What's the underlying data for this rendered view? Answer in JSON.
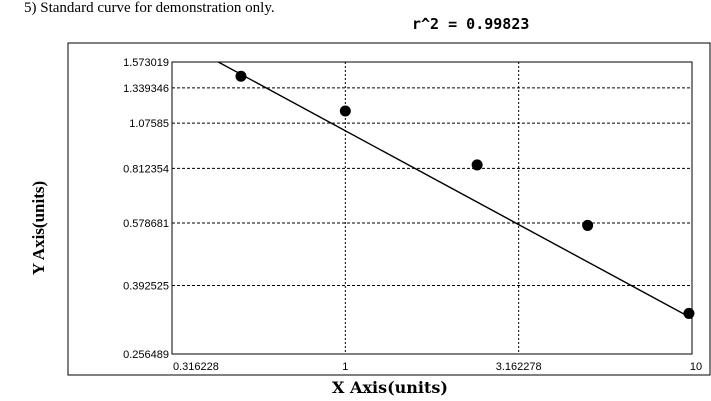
{
  "caption": "5)     Standard curve for demonstration only.",
  "chart_data": {
    "type": "scatter",
    "r_squared_label": "r^2  =  0.99823",
    "xlabel": "X Axis(units)",
    "ylabel": "Y Axis(units)",
    "x_scale": "log",
    "y_scale": "log",
    "xlim": [
      0.316228,
      10
    ],
    "ylim": [
      0.256489,
      1.573019
    ],
    "x_ticks": [
      {
        "value": 0.316228,
        "label": "0.316228"
      },
      {
        "value": 1,
        "label": "1"
      },
      {
        "value": 3.162278,
        "label": "3.162278"
      },
      {
        "value": 10,
        "label": "10"
      }
    ],
    "y_ticks": [
      {
        "value": 1.573019,
        "label": "1.573019"
      },
      {
        "value": 1.339346,
        "label": "1.339346"
      },
      {
        "value": 1.07585,
        "label": "1.07585"
      },
      {
        "value": 0.812354,
        "label": "0.812354"
      },
      {
        "value": 0.578681,
        "label": "0.578681"
      },
      {
        "value": 0.392525,
        "label": "0.392525"
      },
      {
        "value": 0.256489,
        "label": "0.256489"
      }
    ],
    "points": [
      {
        "x": 0.5,
        "y": 1.44
      },
      {
        "x": 1.0,
        "y": 1.16
      },
      {
        "x": 2.4,
        "y": 0.83
      },
      {
        "x": 5.0,
        "y": 0.57
      },
      {
        "x": 9.8,
        "y": 0.33
      }
    ],
    "fit_line": [
      {
        "x": 0.43,
        "y": 1.573019
      },
      {
        "x": 10,
        "y": 0.32
      }
    ],
    "grid": true,
    "legend": "none"
  }
}
